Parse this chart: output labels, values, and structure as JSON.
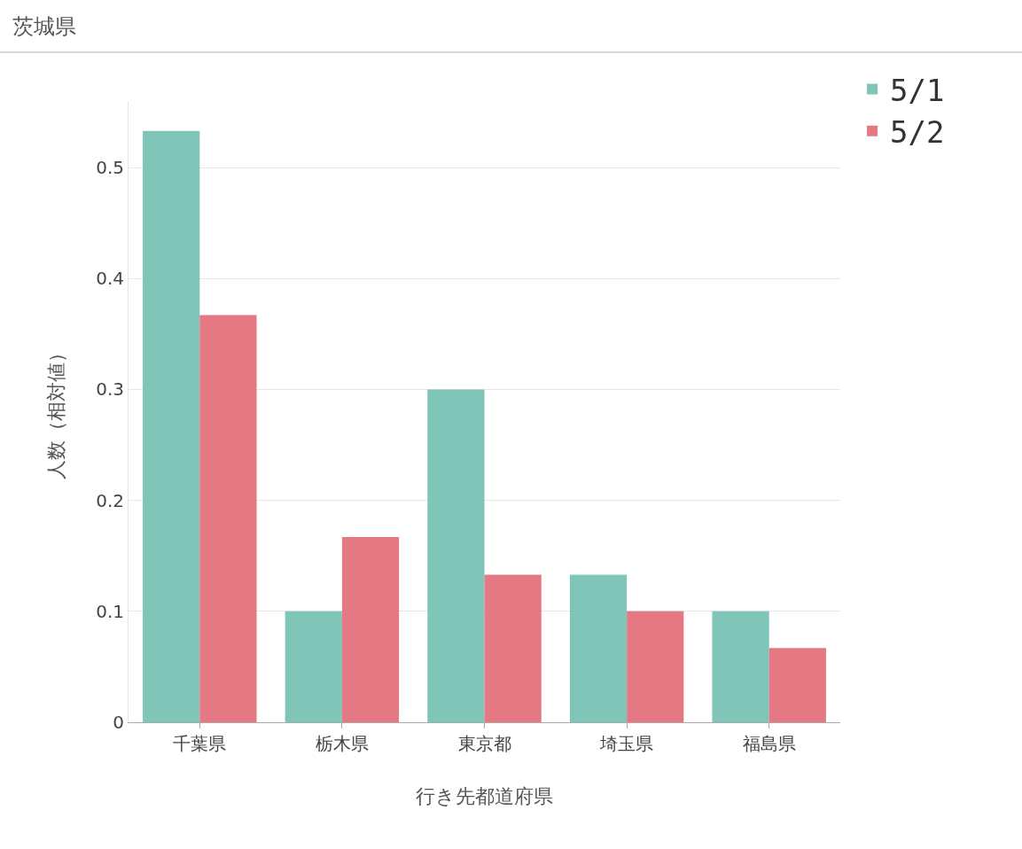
{
  "chart_data": {
    "type": "bar",
    "title": "茨城県",
    "xlabel": "行き先都道府県",
    "ylabel": "人数（相対値）",
    "categories": [
      "千葉県",
      "栃木県",
      "東京都",
      "埼玉県",
      "福島県"
    ],
    "series": [
      {
        "name": "5/1",
        "color": "#7fc5b8",
        "values": [
          0.533,
          0.1,
          0.3,
          0.133,
          0.1
        ]
      },
      {
        "name": "5/2",
        "color": "#e47984",
        "values": [
          0.367,
          0.167,
          0.133,
          0.1,
          0.067
        ]
      }
    ],
    "ylim": [
      0,
      0.56
    ],
    "yticks": [
      0,
      0.1,
      0.2,
      0.3,
      0.4,
      0.5
    ],
    "grid": "y",
    "legend": "top right"
  }
}
